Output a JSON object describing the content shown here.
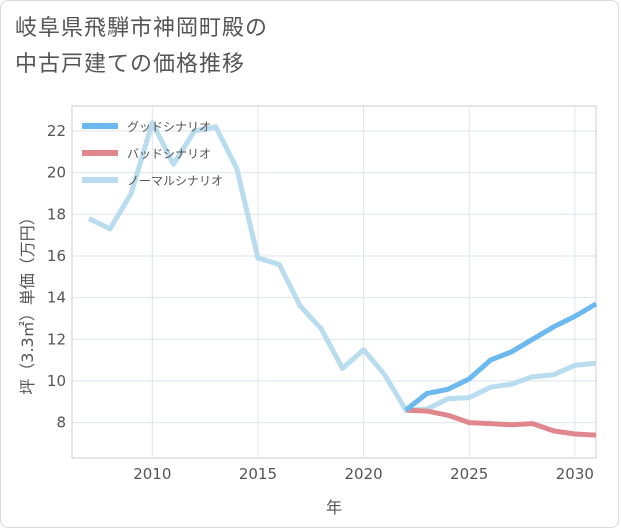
{
  "title_lines": [
    "岐阜県飛騨市神岡町殿の",
    "中古戸建ての価格推移"
  ],
  "chart_data": {
    "type": "line",
    "xlabel": "年",
    "ylabel": "坪（3.3㎡）単価（万円）",
    "xlim": [
      2006.2,
      2031
    ],
    "ylim": [
      6.3,
      23.2
    ],
    "xticks": [
      2010,
      2015,
      2020,
      2025,
      2030
    ],
    "yticks": [
      8,
      10,
      12,
      14,
      16,
      18,
      20,
      22
    ],
    "grid": true,
    "legend_position": "top-left",
    "series": [
      {
        "name": "グッドシナリオ",
        "color": "#6bb9ee",
        "x": [
          2022,
          2023,
          2024,
          2025,
          2026,
          2027,
          2028,
          2029,
          2030,
          2031
        ],
        "values": [
          8.6,
          9.4,
          9.6,
          10.1,
          11.0,
          11.4,
          12.0,
          12.6,
          13.1,
          13.7
        ]
      },
      {
        "name": "バッドシナリオ",
        "color": "#e0878e",
        "x": [
          2022,
          2023,
          2024,
          2025,
          2026,
          2027,
          2028,
          2029,
          2030,
          2031
        ],
        "values": [
          8.6,
          8.55,
          8.35,
          8.0,
          7.95,
          7.9,
          7.95,
          7.6,
          7.45,
          7.4
        ]
      },
      {
        "name": "ノーマルシナリオ",
        "color": "#b9dcee",
        "x": [
          2007,
          2008,
          2009,
          2010,
          2011,
          2012,
          2013,
          2014,
          2015,
          2016,
          2017,
          2018,
          2019,
          2020,
          2021,
          2022,
          2023,
          2024,
          2025,
          2026,
          2027,
          2028,
          2029,
          2030,
          2031
        ],
        "values": [
          17.8,
          17.3,
          19.0,
          22.4,
          20.4,
          22.0,
          22.2,
          20.2,
          15.9,
          15.6,
          13.6,
          12.5,
          10.6,
          11.5,
          10.3,
          8.6,
          8.65,
          9.15,
          9.2,
          9.7,
          9.85,
          10.2,
          10.3,
          10.75,
          10.85
        ]
      }
    ]
  }
}
